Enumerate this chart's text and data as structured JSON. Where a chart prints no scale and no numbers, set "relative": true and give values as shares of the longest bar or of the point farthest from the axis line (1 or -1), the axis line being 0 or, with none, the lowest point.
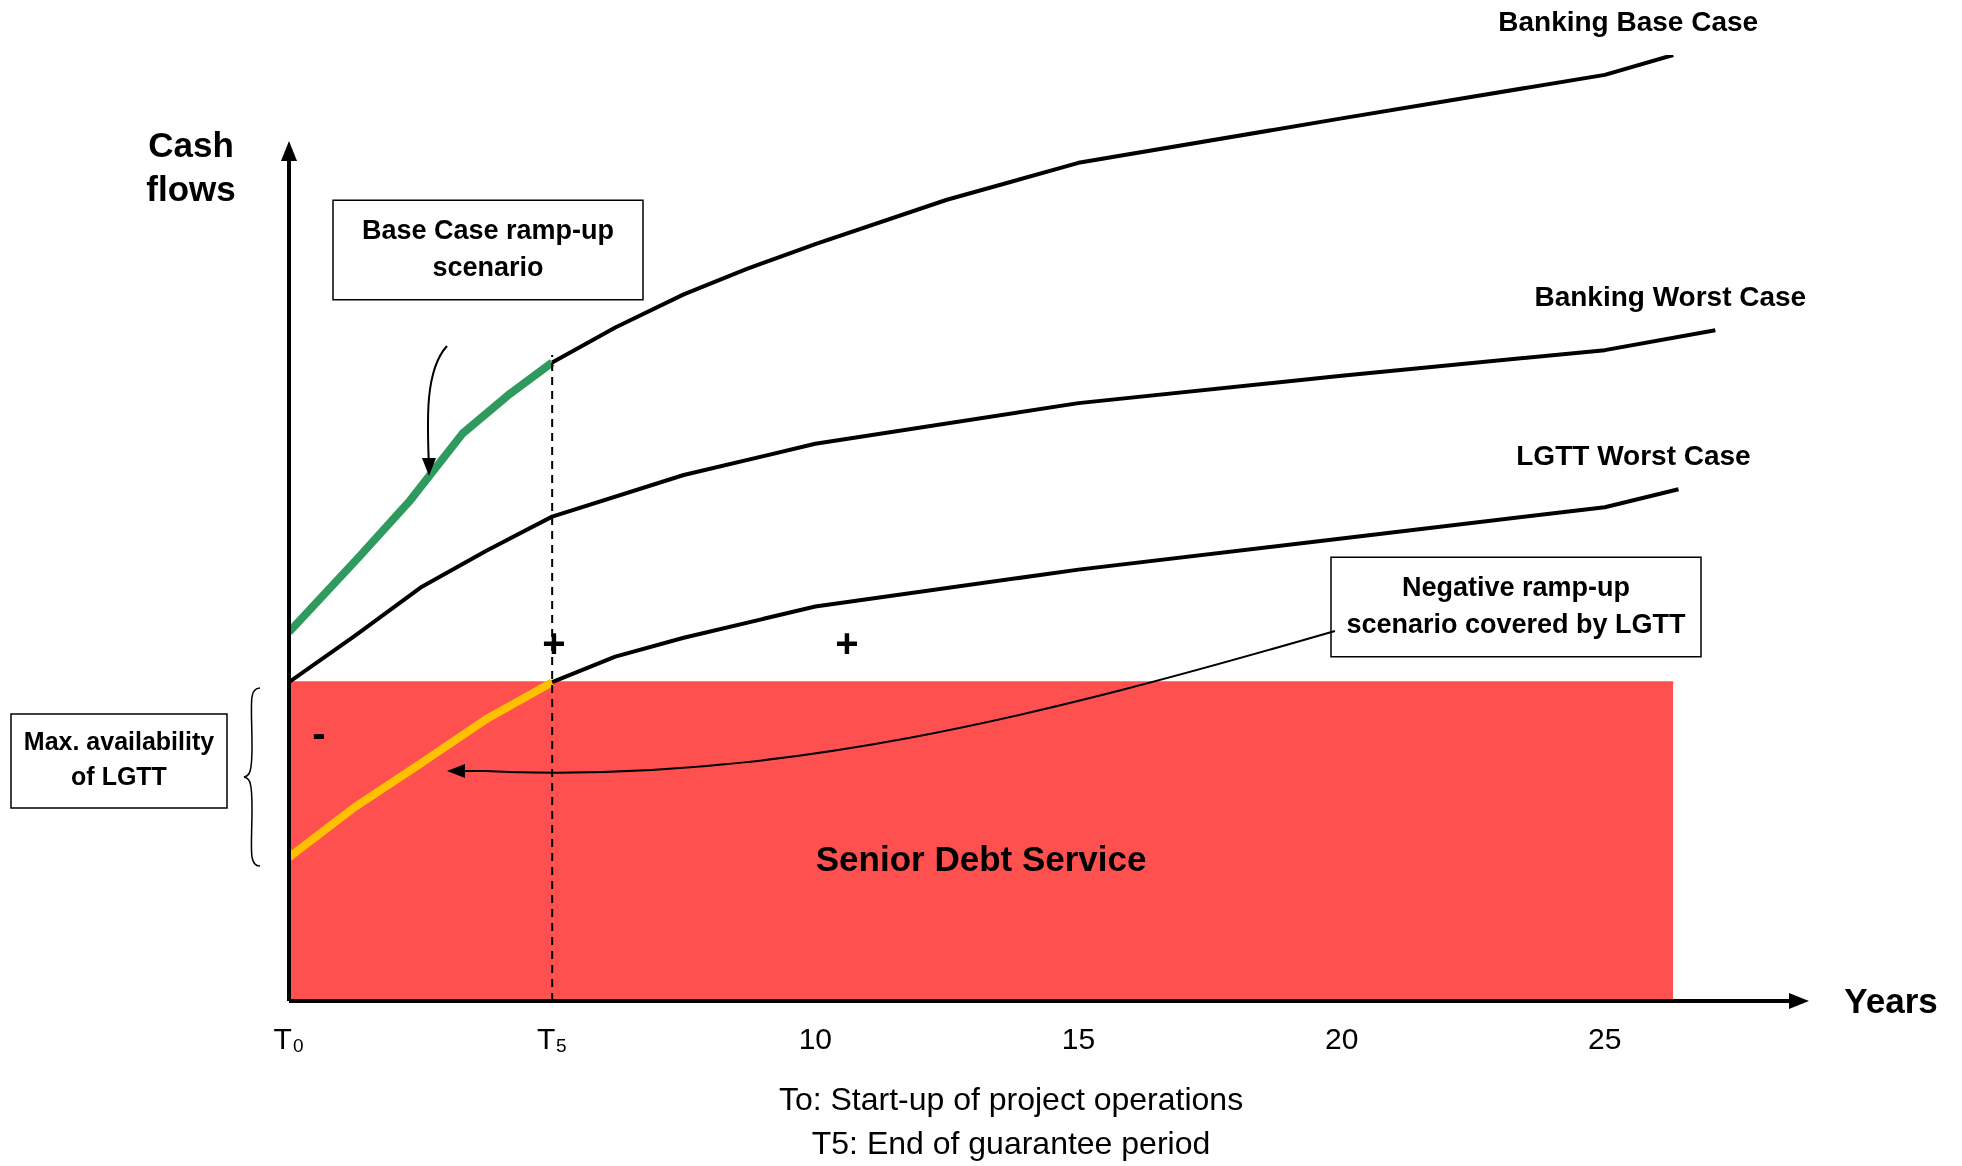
{
  "chart_data": {
    "type": "line",
    "relative": true,
    "xlabel": "Years",
    "ylabel": "Cash flows",
    "xlim": [
      0,
      28.5
    ],
    "xticks": [
      {
        "value": 0,
        "label": "T₀"
      },
      {
        "value": 5,
        "label": "T₅"
      },
      10,
      15,
      20,
      25
    ],
    "grid": false,
    "legend": false,
    "tick_labels": "x",
    "marker": "none",
    "line_style": "solid",
    "series": [
      {
        "name": "Senior Debt Service",
        "type": "area",
        "color": "#ff5050",
        "x": [
          0,
          5,
          10,
          15,
          20,
          25,
          26.3
        ],
        "values": [
          0.337,
          0.337,
          0.337,
          0.337,
          0.337,
          0.337,
          0.337
        ]
      },
      {
        "color": "#ffc000",
        "x": [
          0,
          1.25,
          2.5,
          3.75,
          5
        ],
        "values": [
          0.152,
          0.205,
          0.251,
          0.298,
          0.337
        ]
      },
      {
        "color": "#2e9a5e",
        "x": [
          0,
          1.34,
          2.3,
          3.3,
          4.2,
          5
        ],
        "values": [
          0.39,
          0.47,
          0.529,
          0.6,
          0.642,
          0.675
        ]
      },
      {
        "name": "Banking Base Case",
        "color": "#000000",
        "x": [
          5,
          6.2,
          7.5,
          8.7,
          10,
          12.5,
          15,
          20,
          25,
          26.3
        ],
        "values": [
          0.675,
          0.712,
          0.747,
          0.774,
          0.8,
          0.847,
          0.886,
          0.933,
          0.979,
          1
        ]
      },
      {
        "name": "Banking Worst Case",
        "color": "#000000",
        "x": [
          0,
          1.25,
          2.5,
          3.75,
          5,
          7.5,
          10,
          15,
          20,
          25,
          27.1
        ],
        "values": [
          0.337,
          0.386,
          0.437,
          0.476,
          0.512,
          0.556,
          0.589,
          0.632,
          0.661,
          0.688,
          0.709
        ]
      },
      {
        "name": "LGTT Worst Case",
        "color": "#000000",
        "x": [
          5,
          6.2,
          7.5,
          10,
          15,
          20,
          25,
          26.4
        ],
        "values": [
          0.337,
          0.364,
          0.384,
          0.417,
          0.456,
          0.489,
          0.522,
          0.541
        ]
      }
    ],
    "ref_lines": [
      {
        "axis": "x",
        "value": 5,
        "line_style": "dashed",
        "color": "#000000"
      }
    ],
    "annotations": [
      "Base Case ramp-up scenario",
      "Negative ramp-up scenario covered by LGTT",
      "Max. availability of LGTT",
      "+",
      "+",
      "-",
      "To: Start-up of project operations",
      "T5: End of guarantee period"
    ]
  }
}
